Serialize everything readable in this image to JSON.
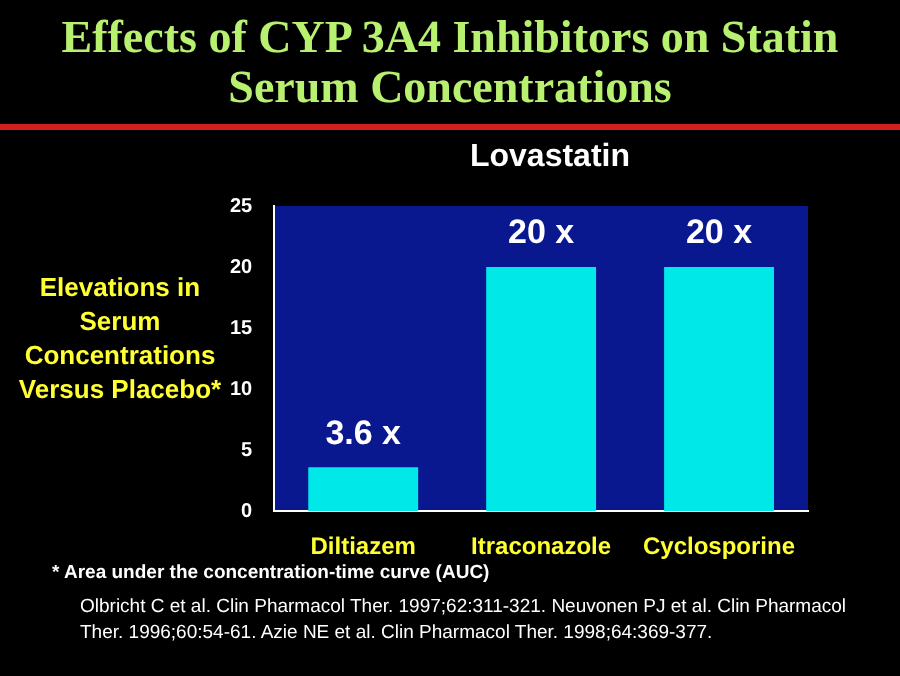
{
  "chart_data": {
    "type": "bar",
    "title": "Effects of CYP 3A4 Inhibitors on Statin Serum Concentrations",
    "subtitle": "Lovastatin",
    "ylabel": "Elevations in Serum Concentrations Versus Placebo*",
    "categories": [
      "Diltiazem",
      "Itraconazole",
      "Cyclosporine"
    ],
    "values": [
      3.6,
      20,
      20
    ],
    "value_labels": [
      "3.6 x",
      "20 x",
      "20 x"
    ],
    "color": "#00e8e8",
    "ylim": [
      0,
      25
    ],
    "yticks": [
      0,
      5,
      10,
      15,
      20,
      25
    ],
    "grid": false,
    "legend": false,
    "annotations": [
      "* Area under the concentration-time curve (AUC)",
      "Olbricht C et al. Clin Pharmacol Ther. 1997;62:311-321.  Neuvonen PJ et al. Clin Pharmacol Ther. 1996;60:54-61.  Azie NE et al. Clin Pharmacol Ther. 1998;64:369-377."
    ]
  }
}
